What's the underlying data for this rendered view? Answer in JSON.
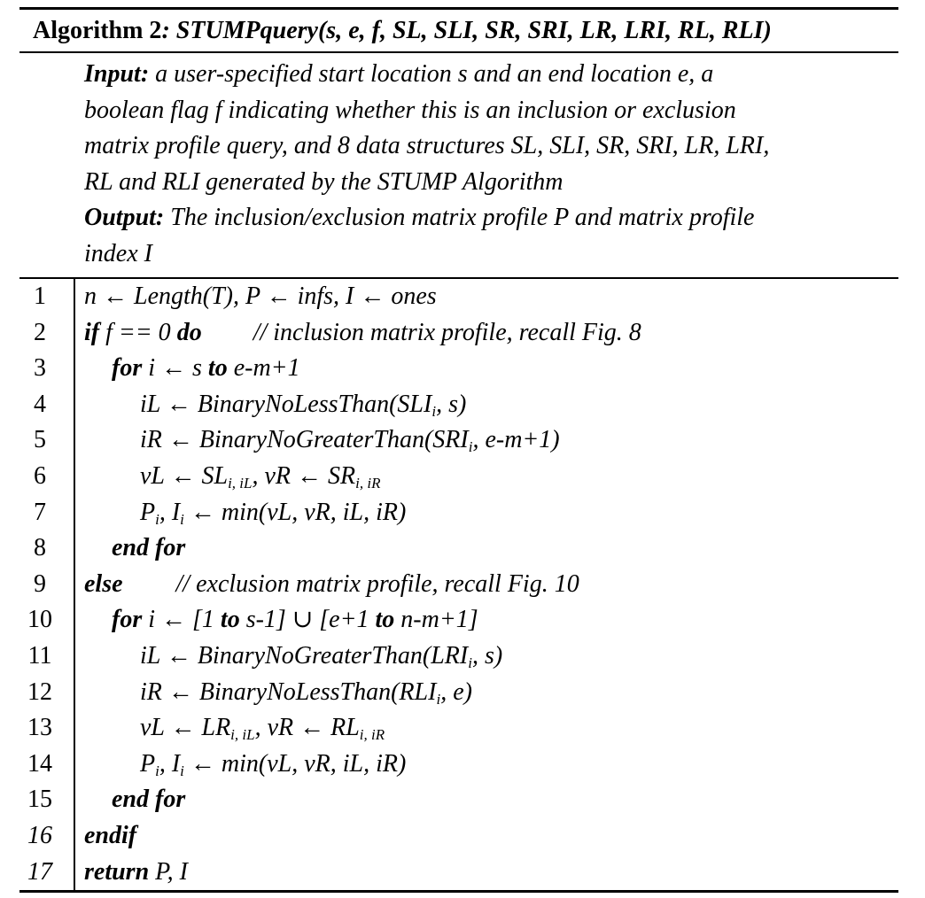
{
  "title": {
    "label": "Algorithm 2",
    "signature": ": STUMPquery(s, e, f, SL, SLI, SR, SRI, LR, LRI, RL, RLI)"
  },
  "input": {
    "keyword": "Input:",
    "lines": [
      " a user-specified start location s and an end location e, a",
      "boolean flag f indicating whether this is an inclusion or exclusion",
      "matrix profile query, and 8 data structures SL, SLI, SR, SRI, LR, LRI,",
      "RL and RLI generated by the STUMP Algorithm"
    ]
  },
  "output": {
    "keyword": "Output:",
    "lines": [
      " The inclusion/exclusion matrix profile P and matrix profile",
      "index I"
    ]
  },
  "lines": [
    {
      "num": "1",
      "text": "n ← Length(T), P ← infs, I ← ones"
    },
    {
      "num": "2",
      "kw_if": "if",
      "cond": " f == 0 ",
      "kw_do": "do",
      "comment": "// inclusion matrix profile, recall Fig. 8"
    },
    {
      "num": "3",
      "kw_for": "for",
      "text_a": " i ← s ",
      "kw_to": "to",
      "text_b": " e-m+1"
    },
    {
      "num": "4",
      "text_a": "iL  ← BinaryNoLessThan(SLI",
      "sub_a": "i",
      "text_b": ", s)"
    },
    {
      "num": "5",
      "text_a": "iR ← BinaryNoGreaterThan(SRI",
      "sub_a": "i",
      "text_b": ", e-m+1)"
    },
    {
      "num": "6",
      "text_a": "vL ← SL",
      "sub_a": "i, iL",
      "text_b": ", vR ← SR",
      "sub_b": "i, iR"
    },
    {
      "num": "7",
      "text_a": "P",
      "sub_a": "i",
      "text_b": ", I",
      "sub_b": "i",
      "text_c": " ← min(vL, vR, iL, iR)"
    },
    {
      "num": "8",
      "kw": "end for"
    },
    {
      "num": "9",
      "kw": "else",
      "comment": "// exclusion matrix profile, recall Fig. 10"
    },
    {
      "num": "10",
      "kw_for": "for",
      "text_a": " i ← [1 ",
      "kw_to": "to",
      "text_b": " s-1] ∪ [e+1 ",
      "kw_to2": "to",
      "text_c": " n-m+1]"
    },
    {
      "num": "11",
      "text_a": "iL  ← BinaryNoGreaterThan(LRI",
      "sub_a": "i",
      "text_b": ", s)"
    },
    {
      "num": "12",
      "text_a": "iR ← BinaryNoLessThan(RLI",
      "sub_a": "i",
      "text_b": ", e)"
    },
    {
      "num": "13",
      "text_a": "vL ← LR",
      "sub_a": "i, iL",
      "text_b": ", vR ← RL",
      "sub_b": "i, iR"
    },
    {
      "num": "14",
      "text_a": "P",
      "sub_a": "i",
      "text_b": ", I",
      "sub_b": "i",
      "text_c": " ← min(vL, vR, iL, iR)"
    },
    {
      "num": "15",
      "kw": "end for"
    },
    {
      "num": "16",
      "kw": "endif"
    },
    {
      "num": "17",
      "kw": "return",
      "text": " P, I"
    }
  ]
}
